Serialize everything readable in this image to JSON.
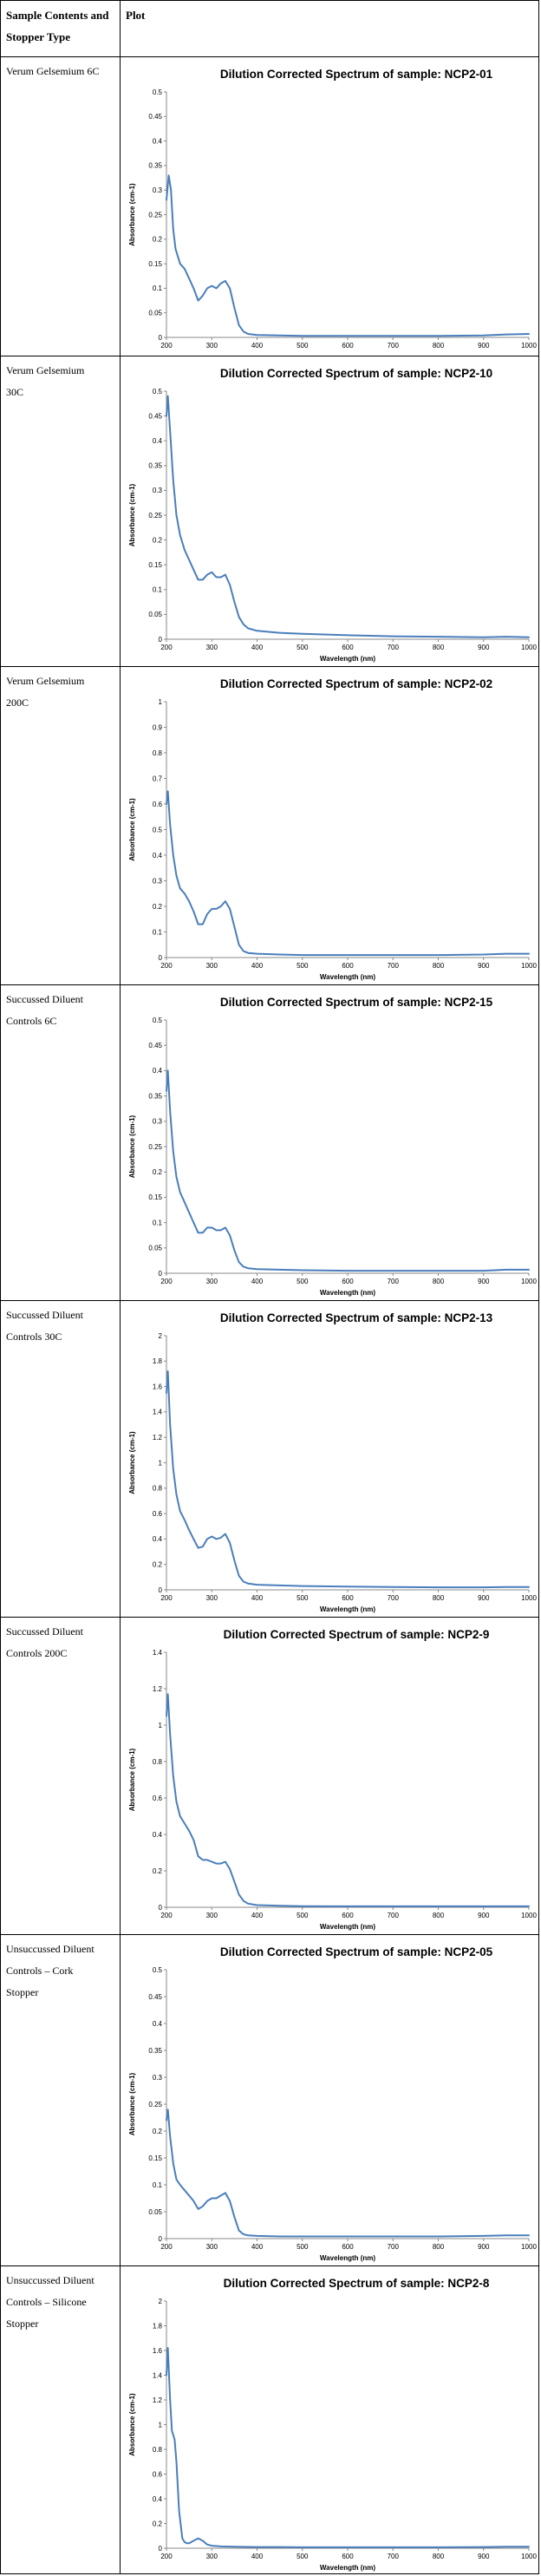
{
  "table": {
    "header": {
      "col1": "Sample Contents and\nStopper Type",
      "col2": "Plot"
    },
    "rows": [
      {
        "label": "Verum Gelsemium 6C",
        "chart_data": {
          "type": "line",
          "title": "Dilution Corrected Spectrum of sample: NCP2-01",
          "xlabel": "",
          "ylabel": "Absorbance (cm-1)",
          "xlim": [
            200,
            1000
          ],
          "ylim": [
            0,
            0.5
          ],
          "xticks": [
            200,
            300,
            400,
            500,
            600,
            700,
            800,
            900,
            1000
          ],
          "yticks": [
            0,
            0.05,
            0.1,
            0.15,
            0.2,
            0.25,
            0.3,
            0.35,
            0.4,
            0.45,
            0.5
          ],
          "color": "#4a7ebb",
          "series": [
            {
              "x": [
                200,
                205,
                210,
                215,
                220,
                230,
                240,
                250,
                260,
                270,
                280,
                290,
                300,
                310,
                320,
                330,
                340,
                350,
                360,
                370,
                380,
                400,
                450,
                500,
                600,
                700,
                800,
                900,
                950,
                1000
              ],
              "y": [
                0.28,
                0.33,
                0.3,
                0.22,
                0.18,
                0.15,
                0.14,
                0.12,
                0.1,
                0.075,
                0.085,
                0.1,
                0.105,
                0.1,
                0.11,
                0.115,
                0.1,
                0.06,
                0.025,
                0.012,
                0.007,
                0.005,
                0.004,
                0.003,
                0.003,
                0.003,
                0.003,
                0.004,
                0.006,
                0.007
              ]
            }
          ]
        }
      },
      {
        "label": "Verum Gelsemium\n30C",
        "chart_data": {
          "type": "line",
          "title": "Dilution Corrected Spectrum of sample: NCP2-10",
          "xlabel": "Wavelength (nm)",
          "ylabel": "Absorbance (cm-1)",
          "xlim": [
            200,
            1000
          ],
          "ylim": [
            0,
            0.5
          ],
          "xticks": [
            200,
            300,
            400,
            500,
            600,
            700,
            800,
            900,
            1000
          ],
          "yticks": [
            0,
            0.05,
            0.1,
            0.15,
            0.2,
            0.25,
            0.3,
            0.35,
            0.4,
            0.45,
            0.5
          ],
          "color": "#4a7ebb",
          "series": [
            {
              "x": [
                200,
                203,
                208,
                215,
                222,
                230,
                240,
                250,
                260,
                270,
                280,
                290,
                300,
                310,
                320,
                330,
                340,
                350,
                360,
                370,
                380,
                400,
                450,
                500,
                600,
                700,
                800,
                900,
                950,
                1000
              ],
              "y": [
                0.45,
                0.49,
                0.42,
                0.32,
                0.25,
                0.21,
                0.18,
                0.16,
                0.14,
                0.12,
                0.12,
                0.13,
                0.135,
                0.125,
                0.125,
                0.13,
                0.11,
                0.075,
                0.045,
                0.03,
                0.022,
                0.017,
                0.013,
                0.011,
                0.008,
                0.006,
                0.005,
                0.004,
                0.005,
                0.004
              ]
            }
          ]
        }
      },
      {
        "label": "Verum Gelsemium\n200C",
        "chart_data": {
          "type": "line",
          "title": "Dilution Corrected Spectrum of sample: NCP2-02",
          "xlabel": "Wavelength (nm)",
          "ylabel": "Absorbance (cm-1)",
          "xlim": [
            200,
            1000
          ],
          "ylim": [
            0,
            1
          ],
          "xticks": [
            200,
            300,
            400,
            500,
            600,
            700,
            800,
            900,
            1000
          ],
          "yticks": [
            0,
            0.1,
            0.2,
            0.3,
            0.4,
            0.5,
            0.6,
            0.7,
            0.8,
            0.9,
            1
          ],
          "color": "#4a7ebb",
          "series": [
            {
              "x": [
                200,
                203,
                208,
                215,
                222,
                230,
                240,
                250,
                260,
                270,
                280,
                290,
                300,
                310,
                320,
                330,
                340,
                350,
                360,
                370,
                380,
                400,
                450,
                500,
                600,
                700,
                800,
                900,
                950,
                1000
              ],
              "y": [
                0.6,
                0.65,
                0.52,
                0.4,
                0.32,
                0.27,
                0.25,
                0.22,
                0.18,
                0.13,
                0.13,
                0.17,
                0.19,
                0.19,
                0.2,
                0.22,
                0.19,
                0.12,
                0.05,
                0.025,
                0.018,
                0.015,
                0.012,
                0.01,
                0.01,
                0.01,
                0.01,
                0.012,
                0.015,
                0.015
              ]
            }
          ]
        }
      },
      {
        "label": "Succussed Diluent\nControls 6C",
        "chart_data": {
          "type": "line",
          "title": "Dilution Corrected Spectrum of sample: NCP2-15",
          "xlabel": "Wavelength (nm)",
          "ylabel": "Absorbance (cm-1)",
          "xlim": [
            200,
            1000
          ],
          "ylim": [
            0,
            0.5
          ],
          "xticks": [
            200,
            300,
            400,
            500,
            600,
            700,
            800,
            900,
            1000
          ],
          "yticks": [
            0,
            0.05,
            0.1,
            0.15,
            0.2,
            0.25,
            0.3,
            0.35,
            0.4,
            0.45,
            0.5
          ],
          "color": "#4a7ebb",
          "series": [
            {
              "x": [
                200,
                203,
                208,
                215,
                222,
                230,
                240,
                250,
                260,
                270,
                280,
                290,
                300,
                310,
                320,
                330,
                340,
                350,
                360,
                370,
                380,
                400,
                450,
                500,
                600,
                700,
                800,
                900,
                950,
                1000
              ],
              "y": [
                0.36,
                0.4,
                0.32,
                0.24,
                0.19,
                0.16,
                0.14,
                0.12,
                0.1,
                0.08,
                0.08,
                0.09,
                0.09,
                0.085,
                0.085,
                0.09,
                0.075,
                0.045,
                0.022,
                0.013,
                0.01,
                0.008,
                0.007,
                0.006,
                0.005,
                0.005,
                0.005,
                0.005,
                0.007,
                0.007
              ]
            }
          ]
        }
      },
      {
        "label": "Succussed Diluent\nControls 30C",
        "chart_data": {
          "type": "line",
          "title": "Dilution Corrected Spectrum of sample: NCP2-13",
          "xlabel": "Wavelength (nm)",
          "ylabel": "Absorbance (cm-1)",
          "xlim": [
            200,
            1000
          ],
          "ylim": [
            0,
            2
          ],
          "xticks": [
            200,
            300,
            400,
            500,
            600,
            700,
            800,
            900,
            1000
          ],
          "yticks": [
            0,
            0.2,
            0.4,
            0.6,
            0.8,
            1,
            1.2,
            1.4,
            1.6,
            1.8,
            2
          ],
          "color": "#4a7ebb",
          "series": [
            {
              "x": [
                200,
                203,
                208,
                215,
                222,
                230,
                240,
                250,
                260,
                270,
                280,
                290,
                300,
                310,
                320,
                330,
                340,
                350,
                360,
                370,
                380,
                400,
                450,
                500,
                600,
                700,
                800,
                900,
                950,
                1000
              ],
              "y": [
                1.55,
                1.72,
                1.3,
                0.95,
                0.75,
                0.62,
                0.55,
                0.47,
                0.4,
                0.33,
                0.34,
                0.4,
                0.42,
                0.4,
                0.41,
                0.44,
                0.37,
                0.23,
                0.11,
                0.065,
                0.05,
                0.04,
                0.035,
                0.03,
                0.025,
                0.022,
                0.02,
                0.02,
                0.022,
                0.022
              ]
            }
          ]
        }
      },
      {
        "label": "Succussed Diluent\nControls 200C",
        "chart_data": {
          "type": "line",
          "title": "Dilution Corrected Spectrum of sample: NCP2-9",
          "xlabel": "Wavelength (nm)",
          "ylabel": "Absorbance (cm-1)",
          "xlim": [
            200,
            1000
          ],
          "ylim": [
            0,
            1.4
          ],
          "xticks": [
            200,
            300,
            400,
            500,
            600,
            700,
            800,
            900,
            1000
          ],
          "yticks": [
            0,
            0.2,
            0.4,
            0.6,
            0.8,
            1,
            1.2,
            1.4
          ],
          "color": "#4a7ebb",
          "series": [
            {
              "x": [
                200,
                203,
                208,
                215,
                222,
                230,
                240,
                250,
                260,
                270,
                280,
                290,
                300,
                310,
                320,
                330,
                340,
                350,
                360,
                370,
                380,
                400,
                450,
                500,
                600,
                700,
                800,
                900,
                950,
                1000
              ],
              "y": [
                1.05,
                1.17,
                0.95,
                0.72,
                0.58,
                0.5,
                0.46,
                0.42,
                0.37,
                0.28,
                0.26,
                0.26,
                0.25,
                0.24,
                0.24,
                0.25,
                0.21,
                0.14,
                0.07,
                0.035,
                0.02,
                0.012,
                0.008,
                0.006,
                0.005,
                0.005,
                0.005,
                0.005,
                0.005,
                0.005
              ]
            }
          ]
        }
      },
      {
        "label": "Unsuccussed Diluent\nControls – Cork\nStopper",
        "chart_data": {
          "type": "line",
          "title": "Dilution Corrected Spectrum of sample: NCP2-05",
          "xlabel": "Wavelength (nm)",
          "ylabel": "Absorbance (cm-1)",
          "xlim": [
            200,
            1000
          ],
          "ylim": [
            0,
            0.5
          ],
          "xticks": [
            200,
            300,
            400,
            500,
            600,
            700,
            800,
            900,
            1000
          ],
          "yticks": [
            0,
            0.05,
            0.1,
            0.15,
            0.2,
            0.25,
            0.3,
            0.35,
            0.4,
            0.45,
            0.5
          ],
          "color": "#4a7ebb",
          "series": [
            {
              "x": [
                200,
                203,
                208,
                215,
                222,
                230,
                240,
                250,
                260,
                270,
                280,
                290,
                300,
                310,
                320,
                330,
                340,
                350,
                360,
                370,
                380,
                400,
                450,
                500,
                600,
                700,
                800,
                900,
                950,
                1000
              ],
              "y": [
                0.22,
                0.24,
                0.19,
                0.14,
                0.11,
                0.1,
                0.09,
                0.08,
                0.07,
                0.055,
                0.06,
                0.07,
                0.075,
                0.075,
                0.08,
                0.085,
                0.07,
                0.04,
                0.015,
                0.008,
                0.006,
                0.005,
                0.004,
                0.004,
                0.004,
                0.004,
                0.004,
                0.005,
                0.006,
                0.006
              ]
            }
          ]
        }
      },
      {
        "label": "Unsuccussed Diluent\nControls – Silicone\nStopper",
        "chart_data": {
          "type": "line",
          "title": "Dilution Corrected Spectrum of sample: NCP2-8",
          "xlabel": "Wavelength (nm)",
          "ylabel": "Absorbance (cm-1)",
          "xlim": [
            200,
            1000
          ],
          "ylim": [
            0,
            2
          ],
          "xticks": [
            200,
            300,
            400,
            500,
            600,
            700,
            800,
            900,
            1000
          ],
          "yticks": [
            0,
            0.2,
            0.4,
            0.6,
            0.8,
            1,
            1.2,
            1.4,
            1.6,
            1.8,
            2
          ],
          "color": "#4a7ebb",
          "series": [
            {
              "x": [
                200,
                203,
                208,
                212,
                218,
                222,
                228,
                235,
                240,
                245,
                250,
                260,
                270,
                280,
                290,
                300,
                320,
                350,
                400,
                450,
                500,
                600,
                700,
                800,
                900,
                950,
                1000
              ],
              "y": [
                1.4,
                1.62,
                1.2,
                0.95,
                0.88,
                0.7,
                0.3,
                0.08,
                0.05,
                0.04,
                0.04,
                0.06,
                0.08,
                0.06,
                0.03,
                0.02,
                0.015,
                0.012,
                0.01,
                0.01,
                0.008,
                0.008,
                0.008,
                0.008,
                0.01,
                0.012,
                0.012
              ]
            }
          ]
        }
      }
    ]
  }
}
